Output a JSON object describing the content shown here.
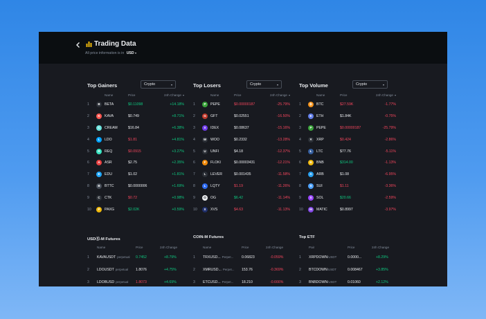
{
  "header": {
    "title": "Trading Data",
    "subtitle_prefix": "All price information is in",
    "currency": "USD"
  },
  "colors": {
    "up": "#0ecb81",
    "down": "#f6465d",
    "accent": "#f0b90b",
    "bg": "#181a20",
    "header_bg": "#0b0e11"
  },
  "top_gainers": {
    "title": "Top Gainers",
    "filter": "Crypto",
    "columns": {
      "name": "Name",
      "price": "Price",
      "change": "24h Change"
    },
    "rows": [
      {
        "rank": "1",
        "icon": "beta-icon",
        "icon_color": "#2b2f36",
        "glyph": "B",
        "name": "BETA",
        "price": "$0.11098",
        "price_dir": "up",
        "change": "+14.18%",
        "change_dir": "up"
      },
      {
        "rank": "2",
        "icon": "kava-icon",
        "icon_color": "#ff564f",
        "glyph": "K",
        "name": "KAVA",
        "price": "$0.749",
        "price_dir": "plain",
        "change": "+8.71%",
        "change_dir": "up"
      },
      {
        "rank": "3",
        "icon": "cream-icon",
        "icon_color": "#69e2dc",
        "glyph": "C",
        "name": "CREAM",
        "price": "$16.84",
        "price_dir": "plain",
        "change": "+6.38%",
        "change_dir": "up"
      },
      {
        "rank": "4",
        "icon": "ldo-icon",
        "icon_color": "#00a3ff",
        "glyph": "L",
        "name": "LDO",
        "price": "$1.81",
        "price_dir": "down",
        "change": "+4.81%",
        "change_dir": "up"
      },
      {
        "rank": "5",
        "icon": "req-icon",
        "icon_color": "#37e3c0",
        "glyph": "R",
        "name": "REQ",
        "price": "$0.0915",
        "price_dir": "down",
        "change": "+3.27%",
        "change_dir": "up"
      },
      {
        "rank": "6",
        "icon": "asr-icon",
        "icon_color": "#e84142",
        "glyph": "A",
        "name": "ASR",
        "price": "$2.75",
        "price_dir": "plain",
        "change": "+2.35%",
        "change_dir": "up"
      },
      {
        "rank": "7",
        "icon": "edu-icon",
        "icon_color": "#1ea7fd",
        "glyph": "E",
        "name": "EDU",
        "price": "$1.02",
        "price_dir": "plain",
        "change": "+1.81%",
        "change_dir": "up"
      },
      {
        "rank": "8",
        "icon": "bttc-icon",
        "icon_color": "#474d57",
        "glyph": "B",
        "name": "BTTC",
        "price": "$0.0000006",
        "price_dir": "plain",
        "change": "+1.69%",
        "change_dir": "up"
      },
      {
        "rank": "9",
        "icon": "ctk-icon",
        "icon_color": "#2b2f36",
        "glyph": "C",
        "name": "CTK",
        "price": "$0.72",
        "price_dir": "down",
        "change": "+0.98%",
        "change_dir": "up"
      },
      {
        "rank": "10",
        "icon": "paxg-icon",
        "icon_color": "#f0b90b",
        "glyph": "P",
        "name": "PAXG",
        "price": "$2.02K",
        "price_dir": "up",
        "change": "+0.59%",
        "change_dir": "up"
      }
    ]
  },
  "top_losers": {
    "title": "Top Losers",
    "filter": "Crypto",
    "columns": {
      "name": "Name",
      "price": "Price",
      "change": "24h Change"
    },
    "rows": [
      {
        "rank": "1",
        "icon": "pepe-icon",
        "icon_color": "#3aa33a",
        "glyph": "P",
        "name": "PEPE",
        "price": "$0.00000187",
        "price_dir": "down",
        "change": "-25.79%",
        "change_dir": "down"
      },
      {
        "rank": "2",
        "icon": "gft-icon",
        "icon_color": "#c0392b",
        "glyph": "G",
        "name": "GFT",
        "price": "$0.02551",
        "price_dir": "plain",
        "change": "-16.50%",
        "change_dir": "down"
      },
      {
        "rank": "3",
        "icon": "idex-icon",
        "icon_color": "#6e3ae8",
        "glyph": "X",
        "name": "IDEX",
        "price": "$0.08637",
        "price_dir": "plain",
        "change": "-15.16%",
        "change_dir": "down"
      },
      {
        "rank": "4",
        "icon": "woo-icon",
        "icon_color": "#2b2f36",
        "glyph": "W",
        "name": "WOO",
        "price": "$0.2332",
        "price_dir": "plain",
        "change": "-13.28%",
        "change_dir": "down"
      },
      {
        "rank": "5",
        "icon": "unfi-icon",
        "icon_color": "#2b2f36",
        "glyph": "U",
        "name": "UNFI",
        "price": "$4.18",
        "price_dir": "plain",
        "change": "-12.37%",
        "change_dir": "down"
      },
      {
        "rank": "6",
        "icon": "floki-icon",
        "icon_color": "#f08a0b",
        "glyph": "F",
        "name": "FLOKI",
        "price": "$0.00003431",
        "price_dir": "plain",
        "change": "-12.21%",
        "change_dir": "down"
      },
      {
        "rank": "7",
        "icon": "lever-icon",
        "icon_color": "#2b2f36",
        "glyph": "L",
        "name": "LEVER",
        "price": "$0.001435",
        "price_dir": "plain",
        "change": "-11.58%",
        "change_dir": "down"
      },
      {
        "rank": "8",
        "icon": "lqty-icon",
        "icon_color": "#2e6bf0",
        "glyph": "L",
        "name": "LQTY",
        "price": "$1.19",
        "price_dir": "down",
        "change": "-11.26%",
        "change_dir": "down"
      },
      {
        "rank": "9",
        "icon": "og-icon",
        "icon_color": "#eaecef",
        "glyph": "O",
        "name": "OG",
        "price": "$6.42",
        "price_dir": "up",
        "change": "-11.14%",
        "change_dir": "down"
      },
      {
        "rank": "10",
        "icon": "xvs-icon",
        "icon_color": "#1f2f6b",
        "glyph": "X",
        "name": "XVS",
        "price": "$4.63",
        "price_dir": "down",
        "change": "-11.13%",
        "change_dir": "down"
      }
    ]
  },
  "top_volume": {
    "title": "Top Volume",
    "filter": "Crypto",
    "columns": {
      "name": "Name",
      "price": "Price",
      "change": "24h Change"
    },
    "rows": [
      {
        "rank": "1",
        "icon": "btc-icon",
        "icon_color": "#f7931a",
        "glyph": "₿",
        "name": "BTC",
        "price": "$27.59K",
        "price_dir": "down",
        "change": "-1.77%",
        "change_dir": "down"
      },
      {
        "rank": "2",
        "icon": "eth-icon",
        "icon_color": "#627eea",
        "glyph": "E",
        "name": "ETH",
        "price": "$1.84K",
        "price_dir": "plain",
        "change": "-0.75%",
        "change_dir": "down"
      },
      {
        "rank": "3",
        "icon": "pepe-icon",
        "icon_color": "#3aa33a",
        "glyph": "P",
        "name": "PEPE",
        "price": "$0.00000187",
        "price_dir": "down",
        "change": "-25.79%",
        "change_dir": "down"
      },
      {
        "rank": "4",
        "icon": "xrp-icon",
        "icon_color": "#2b2f36",
        "glyph": "✕",
        "name": "XRP",
        "price": "$0.424",
        "price_dir": "down",
        "change": "-2.86%",
        "change_dir": "down"
      },
      {
        "rank": "5",
        "icon": "ltc-icon",
        "icon_color": "#345d9d",
        "glyph": "Ł",
        "name": "LTC",
        "price": "$77.76",
        "price_dir": "plain",
        "change": "-5.11%",
        "change_dir": "down"
      },
      {
        "rank": "6",
        "icon": "bnb-icon",
        "icon_color": "#f0b90b",
        "glyph": "B",
        "name": "BNB",
        "price": "$314.00",
        "price_dir": "up",
        "change": "-1.13%",
        "change_dir": "down"
      },
      {
        "rank": "7",
        "icon": "arb-icon",
        "icon_color": "#28a0f0",
        "glyph": "A",
        "name": "ARB",
        "price": "$1.08",
        "price_dir": "plain",
        "change": "-6.95%",
        "change_dir": "down"
      },
      {
        "rank": "8",
        "icon": "sui-icon",
        "icon_color": "#4da2ff",
        "glyph": "S",
        "name": "SUI",
        "price": "$1.11",
        "price_dir": "down",
        "change": "-3.36%",
        "change_dir": "down"
      },
      {
        "rank": "9",
        "icon": "sol-icon",
        "icon_color": "#9945ff",
        "glyph": "S",
        "name": "SOL",
        "price": "$20.66",
        "price_dir": "up",
        "change": "-2.59%",
        "change_dir": "down"
      },
      {
        "rank": "10",
        "icon": "matic-icon",
        "icon_color": "#8247e5",
        "glyph": "M",
        "name": "MATIC",
        "price": "$0.8997",
        "price_dir": "plain",
        "change": "-3.97%",
        "change_dir": "down"
      }
    ]
  },
  "usdm_futures": {
    "title": "USDⓈ-M Futures",
    "columns": {
      "name": "Name",
      "price": "Price",
      "change": "24h Change"
    },
    "rows": [
      {
        "rank": "1",
        "symbol": "KAVAUSDT",
        "suffix": "perpetual",
        "price": "0.7452",
        "price_dir": "up",
        "change": "+8.79%",
        "change_dir": "up"
      },
      {
        "rank": "2",
        "symbol": "LDOUSDT",
        "suffix": "perpetual",
        "price": "1.8076",
        "price_dir": "plain",
        "change": "+4.75%",
        "change_dir": "up"
      },
      {
        "rank": "3",
        "symbol": "LDOBUSD",
        "suffix": "perpetual",
        "price": "1.8073",
        "price_dir": "down",
        "change": "+4.69%",
        "change_dir": "up"
      }
    ]
  },
  "coinm_futures": {
    "title": "COIN-M Futures",
    "columns": {
      "name": "Name",
      "price": "Price",
      "change": "24h Change"
    },
    "rows": [
      {
        "rank": "1",
        "symbol": "TRXUSD...",
        "suffix": "Perpet...",
        "price": "0.06823",
        "price_dir": "plain",
        "change": "-0.059%",
        "change_dir": "down"
      },
      {
        "rank": "2",
        "symbol": "XMRUSD...",
        "suffix": "Perpet...",
        "price": "153.76",
        "price_dir": "plain",
        "change": "-0.369%",
        "change_dir": "down"
      },
      {
        "rank": "3",
        "symbol": "ETCUSD...",
        "suffix": "Perpet...",
        "price": "18.210",
        "price_dir": "plain",
        "change": "-0.666%",
        "change_dir": "down"
      }
    ]
  },
  "top_etf": {
    "title": "Top ETF",
    "columns": {
      "name": "Pair",
      "price": "Price",
      "change": "24h Change"
    },
    "rows": [
      {
        "rank": "1",
        "symbol": "XRPDOWN",
        "suffix": "/USDT",
        "price": "0.0000...",
        "price_dir": "plain",
        "change": "+8.29%",
        "change_dir": "up"
      },
      {
        "rank": "2",
        "symbol": "BTCDOWN",
        "suffix": "/USDT",
        "price": "0.008467",
        "price_dir": "plain",
        "change": "+3.85%",
        "change_dir": "up"
      },
      {
        "rank": "3",
        "symbol": "BNBDOWN",
        "suffix": "/USDT",
        "price": "0.01060",
        "price_dir": "plain",
        "change": "+2.12%",
        "change_dir": "up"
      }
    ]
  }
}
